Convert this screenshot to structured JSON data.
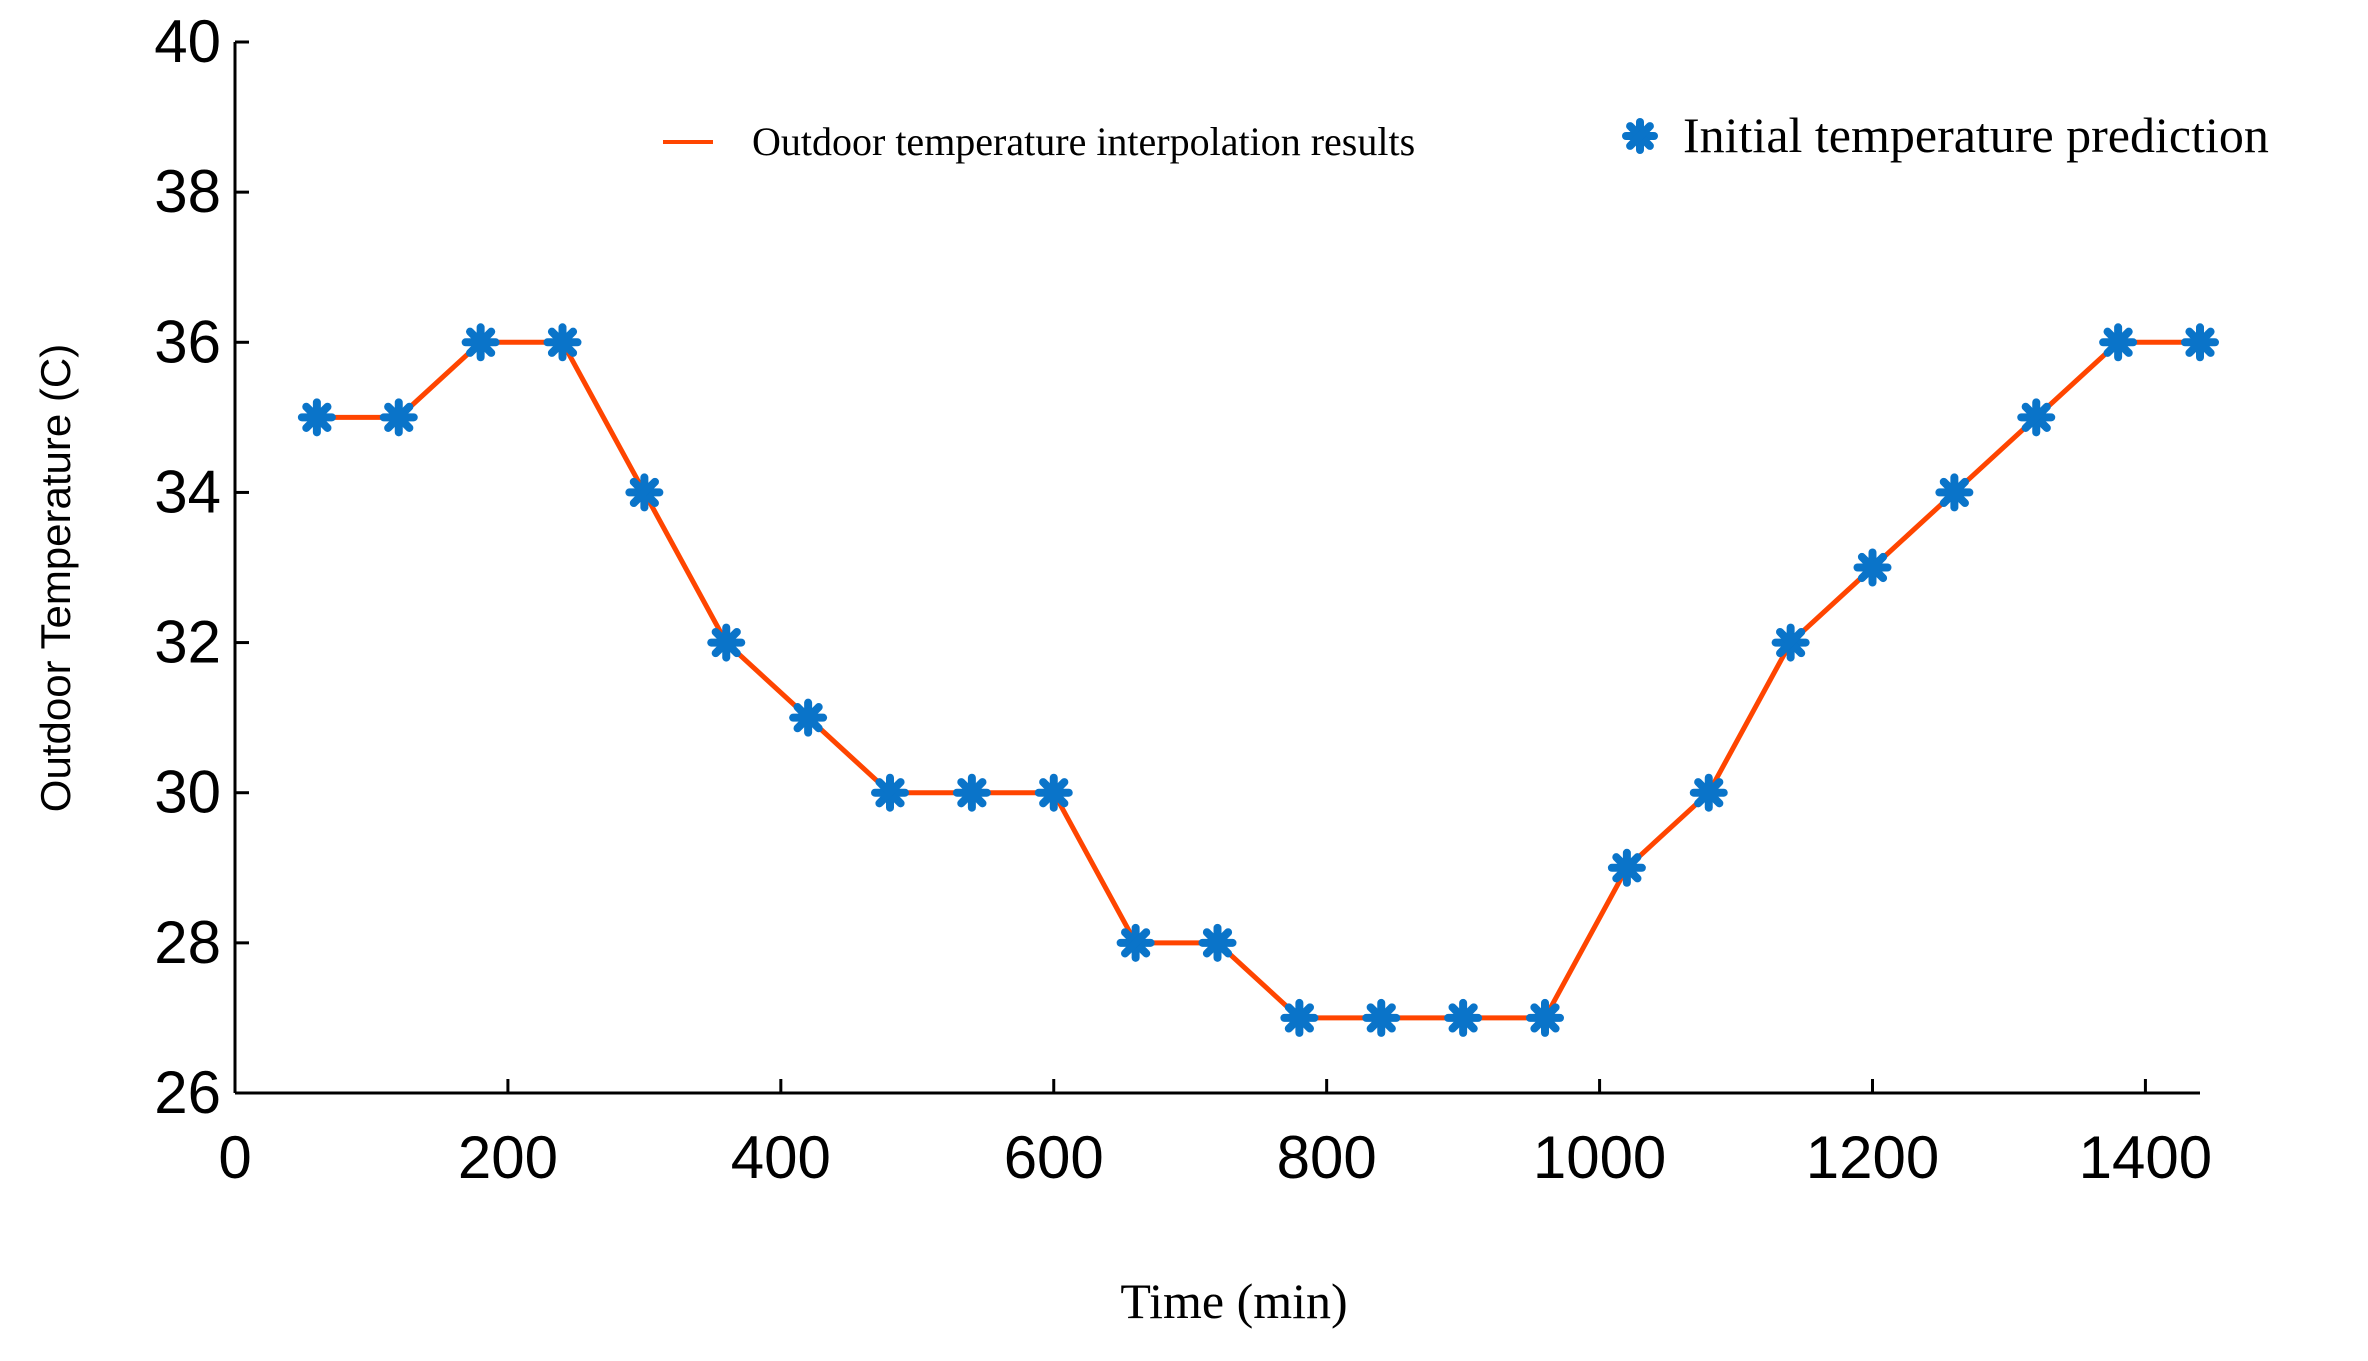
{
  "chart_data": {
    "type": "line",
    "title": "",
    "xlabel": "Time (min)",
    "ylabel": "Outdoor Temperature (C)",
    "xlim": [
      0,
      1440
    ],
    "ylim": [
      26,
      40
    ],
    "xticks": [
      0,
      200,
      400,
      600,
      800,
      1000,
      1200,
      1400
    ],
    "yticks": [
      26,
      28,
      30,
      32,
      34,
      36,
      38,
      40
    ],
    "grid": false,
    "legend_position": "top-right",
    "series": [
      {
        "name": "Outdoor temperature interpolation results",
        "style": "line",
        "color": "#ff4500",
        "x": [
          60,
          120,
          180,
          240,
          300,
          360,
          420,
          480,
          540,
          600,
          660,
          720,
          780,
          840,
          900,
          960,
          1020,
          1080,
          1140,
          1200,
          1260,
          1320,
          1380,
          1440
        ],
        "values": [
          35,
          35,
          36,
          36,
          34,
          32,
          31,
          30,
          30,
          30,
          28,
          28,
          27,
          27,
          27,
          27,
          29,
          30,
          32,
          33,
          34,
          35,
          36,
          36
        ]
      },
      {
        "name": "Initial temperature prediction",
        "style": "marker",
        "marker": "asterisk",
        "color": "#0a74c9",
        "x": [
          60,
          120,
          180,
          240,
          300,
          360,
          420,
          480,
          540,
          600,
          660,
          720,
          780,
          840,
          900,
          960,
          1020,
          1080,
          1140,
          1200,
          1260,
          1320,
          1380,
          1440
        ],
        "values": [
          35,
          35,
          36,
          36,
          34,
          32,
          31,
          30,
          30,
          30,
          28,
          28,
          27,
          27,
          27,
          27,
          29,
          30,
          32,
          33,
          34,
          35,
          36,
          36
        ]
      }
    ]
  }
}
